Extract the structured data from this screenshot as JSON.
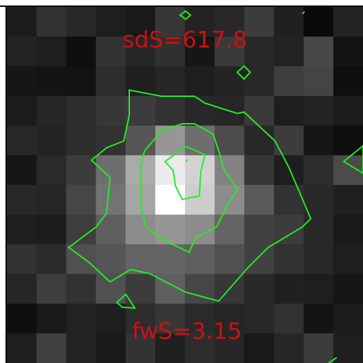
{
  "labels": {
    "top": "sdS=617.8",
    "bottom": "fwS=3.15"
  },
  "colors": {
    "label": "#cc1111",
    "contour": "#22ee22",
    "frame": "#ffffff"
  },
  "image": {
    "grid_cols": 12,
    "grid_rows": 12,
    "pixels": [
      [
        28,
        50,
        40,
        30,
        25,
        55,
        35,
        40,
        60,
        32,
        10,
        35
      ],
      [
        35,
        30,
        15,
        50,
        38,
        48,
        22,
        58,
        40,
        35,
        72,
        20
      ],
      [
        22,
        20,
        18,
        45,
        32,
        38,
        30,
        35,
        40,
        62,
        68,
        15
      ],
      [
        28,
        38,
        45,
        55,
        60,
        50,
        40,
        38,
        58,
        30,
        35,
        28
      ],
      [
        40,
        35,
        45,
        50,
        85,
        150,
        110,
        75,
        40,
        60,
        22,
        15
      ],
      [
        22,
        42,
        60,
        110,
        170,
        235,
        210,
        130,
        55,
        30,
        45,
        75
      ],
      [
        40,
        38,
        70,
        115,
        165,
        255,
        205,
        140,
        90,
        50,
        40,
        32
      ],
      [
        30,
        28,
        62,
        95,
        140,
        150,
        140,
        100,
        65,
        60,
        40,
        25
      ],
      [
        50,
        42,
        80,
        85,
        100,
        100,
        95,
        80,
        65,
        50,
        40,
        30
      ],
      [
        38,
        62,
        50,
        80,
        60,
        95,
        70,
        55,
        40,
        32,
        30,
        22
      ],
      [
        15,
        25,
        35,
        30,
        45,
        55,
        42,
        38,
        40,
        50,
        20,
        28
      ],
      [
        30,
        65,
        35,
        25,
        50,
        32,
        45,
        38,
        25,
        38,
        60,
        30
      ]
    ]
  }
}
